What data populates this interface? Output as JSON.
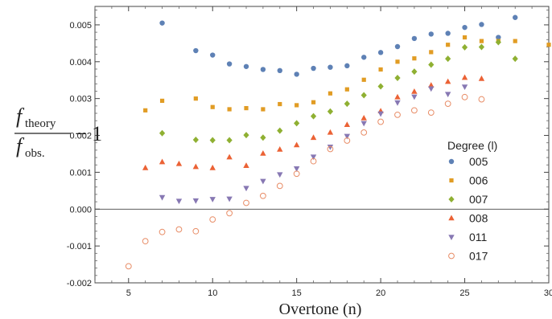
{
  "chart_data": {
    "type": "scatter",
    "xlabel": "Overtone (n)",
    "ylabel": {
      "numerator": "f",
      "numerator_sub": "theory",
      "denominator": "f",
      "denominator_sub": "obs.",
      "minus": "− 1"
    },
    "xlim": [
      3,
      30
    ],
    "ylim": [
      -0.002,
      0.0055
    ],
    "xticks": [
      5,
      10,
      15,
      20,
      25,
      30
    ],
    "yticks": [
      -0.002,
      -0.001,
      0.0,
      0.001,
      0.002,
      0.003,
      0.004,
      0.005
    ],
    "ytick_labels": [
      "-0.002",
      "-0.001",
      "0.000",
      "0.001",
      "0.002",
      "0.003",
      "0.004",
      "0.005"
    ],
    "zero_line": true,
    "grid": false,
    "legend": {
      "title": "Degree (l)",
      "placement": "right"
    },
    "series": [
      {
        "name": "005",
        "marker": "circle",
        "color": "#5e81b5",
        "x": [
          7,
          9,
          10,
          11,
          12,
          13,
          14,
          15,
          16,
          17,
          18,
          19,
          20,
          21,
          22,
          23,
          24,
          25,
          26,
          27,
          28
        ],
        "y": [
          0.00505,
          0.0043,
          0.00418,
          0.00394,
          0.00387,
          0.00379,
          0.00376,
          0.00366,
          0.00382,
          0.00385,
          0.00389,
          0.00412,
          0.00425,
          0.00441,
          0.00463,
          0.00475,
          0.00477,
          0.00493,
          0.00501,
          0.00466,
          0.0052
        ]
      },
      {
        "name": "006",
        "marker": "square",
        "color": "#e19c24",
        "x": [
          6,
          7,
          9,
          10,
          11,
          12,
          13,
          14,
          15,
          16,
          17,
          18,
          19,
          20,
          21,
          22,
          23,
          24,
          25,
          26,
          27,
          28,
          30
        ],
        "y": [
          0.00268,
          0.00294,
          0.003,
          0.00277,
          0.00271,
          0.00274,
          0.00271,
          0.00285,
          0.00282,
          0.0029,
          0.00314,
          0.00325,
          0.00351,
          0.00379,
          0.004,
          0.00409,
          0.00426,
          0.00446,
          0.00466,
          0.00456,
          0.00456,
          0.00456,
          0.00446
        ]
      },
      {
        "name": "007",
        "marker": "diamond",
        "color": "#8fb032",
        "x": [
          7,
          9,
          10,
          11,
          12,
          13,
          14,
          15,
          16,
          17,
          18,
          19,
          20,
          21,
          22,
          23,
          24,
          25,
          26,
          27,
          28
        ],
        "y": [
          0.00206,
          0.00188,
          0.00187,
          0.00187,
          0.00201,
          0.00194,
          0.00213,
          0.00233,
          0.00252,
          0.00265,
          0.00286,
          0.00309,
          0.00333,
          0.00356,
          0.00373,
          0.00392,
          0.00408,
          0.00439,
          0.0044,
          0.00453,
          0.00408
        ]
      },
      {
        "name": "008",
        "marker": "triangle",
        "color": "#eb6235",
        "x": [
          6,
          7,
          8,
          9,
          10,
          11,
          12,
          13,
          14,
          15,
          16,
          17,
          18,
          19,
          20,
          21,
          22,
          23,
          24,
          25,
          26
        ],
        "y": [
          0.00112,
          0.00128,
          0.00123,
          0.00115,
          0.00112,
          0.00141,
          0.00118,
          0.00151,
          0.00162,
          0.00174,
          0.00194,
          0.00208,
          0.00229,
          0.00247,
          0.00266,
          0.00304,
          0.00319,
          0.00336,
          0.00346,
          0.00357,
          0.00354
        ]
      },
      {
        "name": "011",
        "marker": "triangle-down",
        "color": "#8778b3",
        "x": [
          7,
          8,
          9,
          10,
          11,
          12,
          13,
          14,
          15,
          16,
          17,
          18,
          19,
          20,
          21,
          22,
          23,
          24,
          25
        ],
        "y": [
          0.00032,
          0.00022,
          0.00023,
          0.00027,
          0.00028,
          0.00057,
          0.00076,
          0.00094,
          0.0011,
          0.00142,
          0.00169,
          0.00198,
          0.00233,
          0.00259,
          0.00289,
          0.00305,
          0.00327,
          0.00312,
          0.00332
        ]
      },
      {
        "name": "017",
        "marker": "open-circle",
        "color": "#e88d67",
        "x": [
          5,
          6,
          7,
          8,
          9,
          10,
          11,
          12,
          13,
          14,
          15,
          16,
          17,
          18,
          19,
          20,
          21,
          22,
          23,
          24,
          25,
          26
        ],
        "y": [
          -0.00155,
          -0.00087,
          -0.00062,
          -0.00055,
          -0.0006,
          -0.00028,
          -0.00011,
          0.00017,
          0.00036,
          0.00063,
          0.00096,
          0.0013,
          0.00163,
          0.00186,
          0.00208,
          0.00237,
          0.00256,
          0.00268,
          0.00262,
          0.00286,
          0.00304,
          0.00298
        ]
      }
    ]
  }
}
